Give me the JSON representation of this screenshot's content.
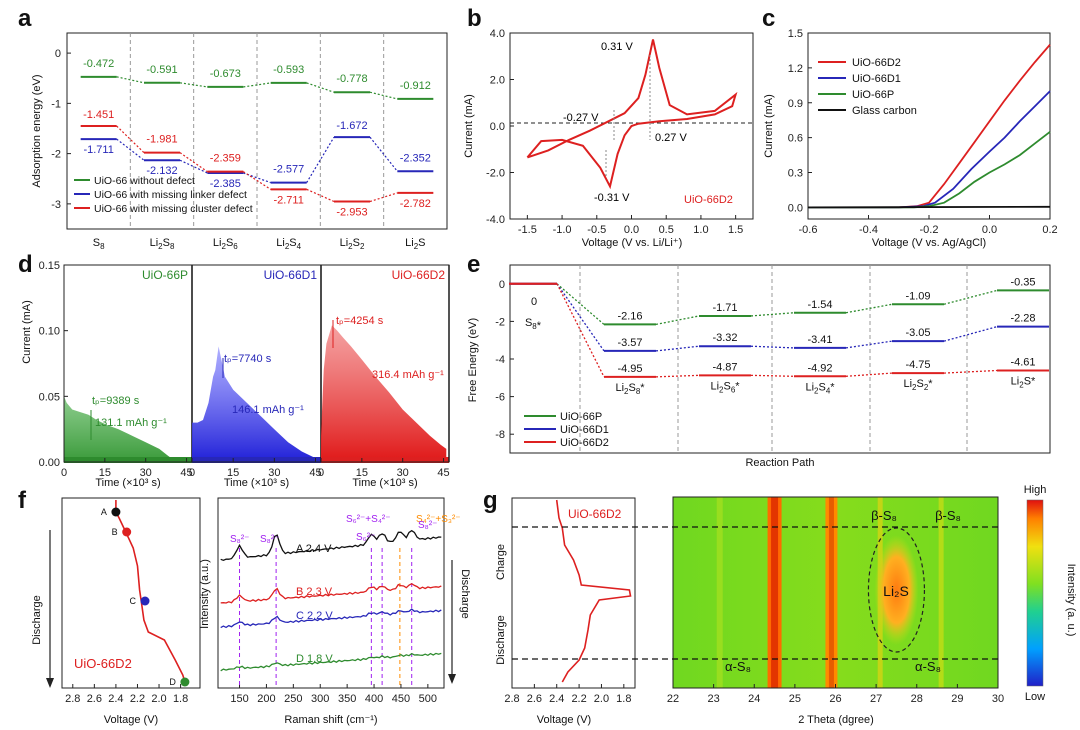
{
  "panel_letters": [
    "a",
    "b",
    "c",
    "d",
    "e",
    "f",
    "g"
  ],
  "chart_data": [
    {
      "panel": "a",
      "type": "line",
      "ylabel": "Adsorption energy (eV)",
      "ylim": [
        -3.5,
        0.4
      ],
      "categories": [
        "S8",
        "Li2S8",
        "Li2S6",
        "Li2S4",
        "Li2S2",
        "Li2S"
      ],
      "series": [
        {
          "name": "UiO-66 without defect",
          "color": "#2e8b2e",
          "values": [
            -0.472,
            -0.591,
            -0.673,
            -0.593,
            -0.778,
            -0.912
          ],
          "labels": [
            "-0.472",
            "-0.591",
            "-0.673",
            "-0.593",
            "-0.778",
            "-0.912"
          ]
        },
        {
          "name": "UiO-66 with missing linker defect",
          "color": "#2727b8",
          "values": [
            -1.711,
            -2.132,
            -2.385,
            -2.577,
            -1.672,
            -2.352
          ],
          "labels": [
            "-1.711",
            "-2.132",
            "-2.385",
            "-2.577",
            "-1.672",
            "-2.352"
          ]
        },
        {
          "name": "UiO-66 with missing cluster defect",
          "color": "#dd2020",
          "values": [
            -1.451,
            -1.981,
            -2.359,
            -2.711,
            -2.953,
            -2.782
          ],
          "labels": [
            "-1.451",
            "-1.981",
            "-2.359",
            "-2.711",
            "-2.953",
            "-2.782"
          ]
        }
      ]
    },
    {
      "panel": "b",
      "type": "line",
      "xlabel": "Voltage (V vs. Li/Li⁺)",
      "ylabel": "Current (mA)",
      "xlim": [
        -1.75,
        1.75
      ],
      "ylim": [
        -4.0,
        4.0
      ],
      "series_label": "UiO-66D2",
      "annotations": [
        "0.31 V",
        "-0.27 V",
        "0.27 V",
        "-0.31 V"
      ]
    },
    {
      "panel": "c",
      "type": "line",
      "xlabel": "Voltage (V vs. Ag/AgCl)",
      "ylabel": "Current (mA)",
      "xlim": [
        -0.6,
        0.2
      ],
      "ylim": [
        -0.1,
        1.5
      ],
      "series": [
        {
          "name": "UiO-66D2",
          "color": "#dd2020",
          "x": [
            -0.6,
            -0.3,
            -0.24,
            -0.2,
            -0.15,
            -0.1,
            -0.05,
            0,
            0.05,
            0.1,
            0.15,
            0.2
          ],
          "values": [
            0,
            0,
            0.01,
            0.04,
            0.2,
            0.38,
            0.56,
            0.74,
            0.92,
            1.09,
            1.25,
            1.4
          ]
        },
        {
          "name": "UiO-66D1",
          "color": "#2727b8",
          "x": [
            -0.6,
            -0.3,
            -0.22,
            -0.18,
            -0.12,
            -0.06,
            0,
            0.05,
            0.1,
            0.15,
            0.2
          ],
          "values": [
            0,
            0,
            0.01,
            0.04,
            0.16,
            0.33,
            0.48,
            0.6,
            0.74,
            0.87,
            1.0
          ]
        },
        {
          "name": "UiO-66P",
          "color": "#2e8b2e",
          "x": [
            -0.6,
            -0.25,
            -0.2,
            -0.15,
            -0.1,
            -0.05,
            0,
            0.05,
            0.1,
            0.15,
            0.2
          ],
          "values": [
            0,
            0,
            0.01,
            0.04,
            0.12,
            0.22,
            0.3,
            0.37,
            0.45,
            0.55,
            0.65
          ]
        },
        {
          "name": "Glass carbon",
          "color": "#111111",
          "x": [
            -0.6,
            0.2
          ],
          "values": [
            0,
            0.005
          ]
        }
      ]
    },
    {
      "panel": "d",
      "type": "area",
      "ylabel": "Current (mA)",
      "xlabel": "Time (×10³ s)",
      "ylim": [
        0,
        0.15
      ],
      "xlim": [
        0,
        47
      ],
      "subplots": [
        {
          "name": "UiO-66P",
          "color": "#2e8b2e",
          "tp": "tₚ=9389 s",
          "capacity": "131.1 mAh g⁻¹"
        },
        {
          "name": "UiO-66D1",
          "color": "#2727b8",
          "tp": "tₚ=7740 s",
          "capacity": "146.1 mAh g⁻¹"
        },
        {
          "name": "UiO-66D2",
          "color": "#dd2020",
          "tp": "tₚ=4254 s",
          "capacity": "316.4 mAh g⁻¹"
        }
      ]
    },
    {
      "panel": "e",
      "type": "line",
      "xlabel": "Reaction Path",
      "ylabel": "Free Energy (eV)",
      "ylim": [
        -9,
        1
      ],
      "categories": [
        "S8*",
        "Li2S8*",
        "Li2S6*",
        "Li2S4*",
        "Li2S2*",
        "Li2S*"
      ],
      "series": [
        {
          "name": "UiO-66P",
          "color": "#2e8b2e",
          "values": [
            0,
            -2.16,
            -1.71,
            -1.54,
            -1.09,
            -0.35
          ]
        },
        {
          "name": "UiO-66D1",
          "color": "#2727b8",
          "values": [
            0,
            -3.57,
            -3.32,
            -3.41,
            -3.05,
            -2.28
          ]
        },
        {
          "name": "UiO-66D2",
          "color": "#dd2020",
          "values": [
            0,
            -4.95,
            -4.87,
            -4.92,
            -4.75,
            -4.61
          ]
        }
      ]
    },
    {
      "panel": "f",
      "type": "line",
      "xlabel_left": "Voltage (V)",
      "xlabel_right": "Raman shift (cm⁻¹)",
      "ylabel_left": "Discharge",
      "ylabel_right": "Intensity (a.u.)",
      "ylabel_far": "Discharge",
      "sample": "UiO-66D2",
      "points": [
        "A",
        "B",
        "C",
        "D"
      ],
      "spectra": [
        {
          "name": "A 2.4 V",
          "color": "#111111"
        },
        {
          "name": "B 2.3 V",
          "color": "#dd2020"
        },
        {
          "name": "C 2.2 V",
          "color": "#2727b8"
        },
        {
          "name": "D 1.8 V",
          "color": "#2e8b2e"
        }
      ],
      "peaks": [
        "S₈²⁻",
        "S₈²⁻",
        "S₆²⁻",
        "S₆²⁻+S₄²⁻",
        "S₄²⁻+S₃²⁻",
        "S₈²⁻"
      ]
    },
    {
      "panel": "g",
      "type": "heatmap",
      "xlabel_left": "Voltage (V)",
      "xlabel": "2 Theta (dgree)",
      "xlim": [
        22,
        30
      ],
      "sample": "UiO-66D2",
      "ylabel_top": "Charge",
      "ylabel_bottom": "Discharge",
      "colorbar_label": "Intensity (a. u.)",
      "colorbar_high": "High",
      "colorbar_low": "Low",
      "phases": [
        "β-S₈",
        "β-S₈",
        "Li₂S",
        "α-S₈",
        "α-S₈"
      ]
    }
  ]
}
